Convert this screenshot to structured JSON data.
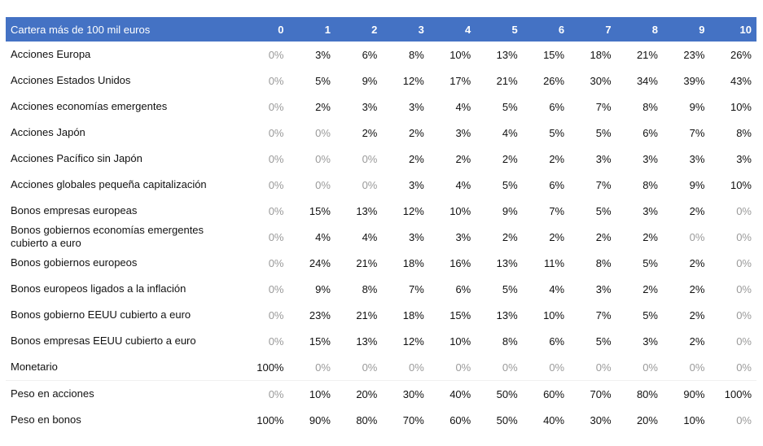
{
  "table": {
    "header_label": "Cartera más de 100 mil euros",
    "columns": [
      "0",
      "1",
      "2",
      "3",
      "4",
      "5",
      "6",
      "7",
      "8",
      "9",
      "10"
    ],
    "rows": [
      {
        "label": "Acciones Europa",
        "values": [
          "0%",
          "3%",
          "6%",
          "8%",
          "10%",
          "13%",
          "15%",
          "18%",
          "21%",
          "23%",
          "26%"
        ]
      },
      {
        "label": "Acciones Estados Unidos",
        "values": [
          "0%",
          "5%",
          "9%",
          "12%",
          "17%",
          "21%",
          "26%",
          "30%",
          "34%",
          "39%",
          "43%"
        ]
      },
      {
        "label": "Acciones economías emergentes",
        "values": [
          "0%",
          "2%",
          "3%",
          "3%",
          "4%",
          "5%",
          "6%",
          "7%",
          "8%",
          "9%",
          "10%"
        ]
      },
      {
        "label": "Acciones Japón",
        "values": [
          "0%",
          "0%",
          "2%",
          "2%",
          "3%",
          "4%",
          "5%",
          "5%",
          "6%",
          "7%",
          "8%"
        ]
      },
      {
        "label": "Acciones Pacífico sin Japón",
        "values": [
          "0%",
          "0%",
          "0%",
          "2%",
          "2%",
          "2%",
          "2%",
          "3%",
          "3%",
          "3%",
          "3%"
        ]
      },
      {
        "label": "Acciones globales pequeña capitalización",
        "values": [
          "0%",
          "0%",
          "0%",
          "3%",
          "4%",
          "5%",
          "6%",
          "7%",
          "8%",
          "9%",
          "10%"
        ]
      },
      {
        "label": "Bonos empresas europeas",
        "values": [
          "0%",
          "15%",
          "13%",
          "12%",
          "10%",
          "9%",
          "7%",
          "5%",
          "3%",
          "2%",
          "0%"
        ]
      },
      {
        "label": "Bonos gobiernos economías emergentes cubierto a euro",
        "values": [
          "0%",
          "4%",
          "4%",
          "3%",
          "3%",
          "2%",
          "2%",
          "2%",
          "2%",
          "0%",
          "0%"
        ]
      },
      {
        "label": "Bonos gobiernos europeos",
        "values": [
          "0%",
          "24%",
          "21%",
          "18%",
          "16%",
          "13%",
          "11%",
          "8%",
          "5%",
          "2%",
          "0%"
        ]
      },
      {
        "label": "Bonos europeos ligados a la inflación",
        "values": [
          "0%",
          "9%",
          "8%",
          "7%",
          "6%",
          "5%",
          "4%",
          "3%",
          "2%",
          "2%",
          "0%"
        ]
      },
      {
        "label": "Bonos gobierno EEUU cubierto a euro",
        "values": [
          "0%",
          "23%",
          "21%",
          "18%",
          "15%",
          "13%",
          "10%",
          "7%",
          "5%",
          "2%",
          "0%"
        ]
      },
      {
        "label": "Bonos empresas EEUU cubierto a euro",
        "values": [
          "0%",
          "15%",
          "13%",
          "12%",
          "10%",
          "8%",
          "6%",
          "5%",
          "3%",
          "2%",
          "0%"
        ]
      },
      {
        "label": "Monetario",
        "values": [
          "100%",
          "0%",
          "0%",
          "0%",
          "0%",
          "0%",
          "0%",
          "0%",
          "0%",
          "0%",
          "0%"
        ]
      },
      {
        "label": "Peso en acciones",
        "values": [
          "0%",
          "10%",
          "20%",
          "30%",
          "40%",
          "50%",
          "60%",
          "70%",
          "80%",
          "90%",
          "100%"
        ]
      },
      {
        "label": "Peso en bonos",
        "values": [
          "100%",
          "90%",
          "80%",
          "70%",
          "60%",
          "50%",
          "40%",
          "30%",
          "20%",
          "10%",
          "0%"
        ]
      }
    ]
  },
  "colors": {
    "header_bg": "#4472c4",
    "header_text": "#ffffff",
    "zero_text": "#9a9a9a"
  }
}
